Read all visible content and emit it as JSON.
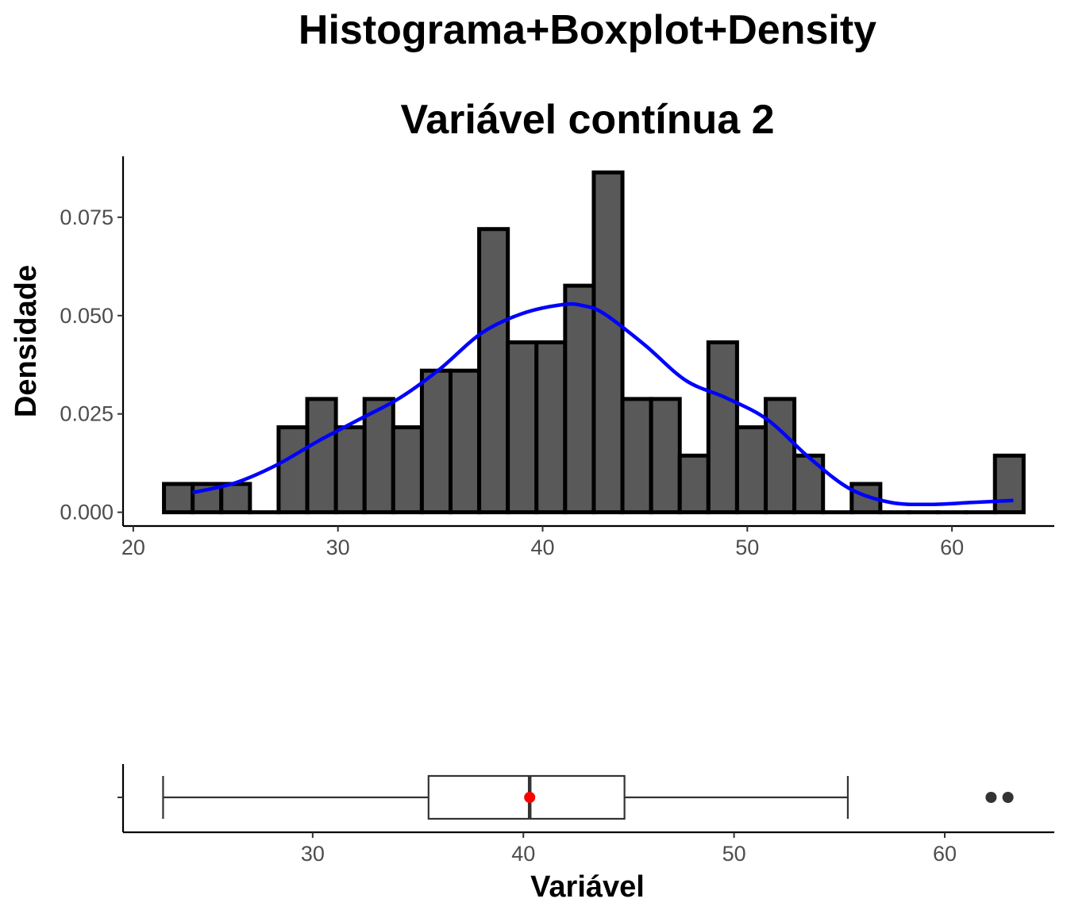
{
  "title_line1": "Histograma+Boxplot+Density",
  "title_line2": "Variável contínua 2",
  "chart_data": [
    {
      "type": "bar",
      "subtype": "histogram",
      "bins": [
        {
          "x0": 21.5,
          "x1": 22.9,
          "density": 0.0072
        },
        {
          "x0": 22.9,
          "x1": 24.3,
          "density": 0.0072
        },
        {
          "x0": 24.3,
          "x1": 25.7,
          "density": 0.0072
        },
        {
          "x0": 25.7,
          "x1": 27.1,
          "density": 0.0
        },
        {
          "x0": 27.1,
          "x1": 28.5,
          "density": 0.0216
        },
        {
          "x0": 28.5,
          "x1": 29.9,
          "density": 0.0288
        },
        {
          "x0": 29.9,
          "x1": 31.3,
          "density": 0.0216
        },
        {
          "x0": 31.3,
          "x1": 32.7,
          "density": 0.0288
        },
        {
          "x0": 32.7,
          "x1": 34.1,
          "density": 0.0216
        },
        {
          "x0": 34.1,
          "x1": 35.5,
          "density": 0.036
        },
        {
          "x0": 35.5,
          "x1": 36.9,
          "density": 0.036
        },
        {
          "x0": 36.9,
          "x1": 38.3,
          "density": 0.072
        },
        {
          "x0": 38.3,
          "x1": 39.7,
          "density": 0.0432
        },
        {
          "x0": 39.7,
          "x1": 41.1,
          "density": 0.0432
        },
        {
          "x0": 41.1,
          "x1": 42.5,
          "density": 0.0576
        },
        {
          "x0": 42.5,
          "x1": 43.9,
          "density": 0.0864
        },
        {
          "x0": 43.9,
          "x1": 45.3,
          "density": 0.0288
        },
        {
          "x0": 45.3,
          "x1": 46.7,
          "density": 0.0288
        },
        {
          "x0": 46.7,
          "x1": 48.1,
          "density": 0.0144
        },
        {
          "x0": 48.1,
          "x1": 49.5,
          "density": 0.0432
        },
        {
          "x0": 49.5,
          "x1": 50.9,
          "density": 0.0216
        },
        {
          "x0": 50.9,
          "x1": 52.3,
          "density": 0.0288
        },
        {
          "x0": 52.3,
          "x1": 53.7,
          "density": 0.0144
        },
        {
          "x0": 53.7,
          "x1": 55.1,
          "density": 0.0
        },
        {
          "x0": 55.1,
          "x1": 56.5,
          "density": 0.0072
        },
        {
          "x0": 56.5,
          "x1": 57.9,
          "density": 0.0
        },
        {
          "x0": 57.9,
          "x1": 59.3,
          "density": 0.0
        },
        {
          "x0": 59.3,
          "x1": 60.7,
          "density": 0.0
        },
        {
          "x0": 60.7,
          "x1": 62.1,
          "density": 0.0
        },
        {
          "x0": 62.1,
          "x1": 63.5,
          "density": 0.0144
        }
      ],
      "density_curve": {
        "x": [
          22.9,
          25,
          27,
          29,
          31,
          33,
          35,
          37,
          39,
          41,
          42,
          43,
          45,
          47,
          49,
          51,
          53,
          55,
          57,
          59,
          61,
          63
        ],
        "y": [
          0.005,
          0.0075,
          0.012,
          0.018,
          0.0235,
          0.029,
          0.0365,
          0.0455,
          0.0505,
          0.0528,
          0.0525,
          0.0505,
          0.0425,
          0.0335,
          0.029,
          0.0235,
          0.014,
          0.006,
          0.0025,
          0.002,
          0.0025,
          0.003
        ],
        "color": "#0000ff"
      },
      "bar_fill": "#595959",
      "bar_stroke": "#000000",
      "xlim": [
        19.5,
        65
      ],
      "ylim": [
        -0.0035,
        0.0905
      ],
      "x_ticks": [
        20,
        30,
        40,
        50,
        60
      ],
      "x_tick_labels": [
        "20",
        "30",
        "40",
        "50",
        "60"
      ],
      "y_ticks": [
        0.0,
        0.025,
        0.05,
        0.075
      ],
      "y_tick_labels": [
        "0.000",
        "0.025",
        "0.050",
        "0.075"
      ],
      "xlabel": "",
      "ylabel": "Densidade",
      "grid": false
    },
    {
      "type": "boxplot",
      "orientation": "horizontal",
      "whisker_low": 22.9,
      "q1": 35.5,
      "median": 40.3,
      "q3": 44.8,
      "whisker_high": 55.4,
      "mean": 40.3,
      "mean_color": "#ff0000",
      "outliers": [
        62.2,
        63.0
      ],
      "xlim": [
        21.0,
        65.2
      ],
      "x_ticks": [
        30,
        40,
        50,
        60
      ],
      "x_tick_labels": [
        "30",
        "40",
        "50",
        "60"
      ],
      "xlabel": "Variável",
      "ylabel": "",
      "grid": false
    }
  ]
}
